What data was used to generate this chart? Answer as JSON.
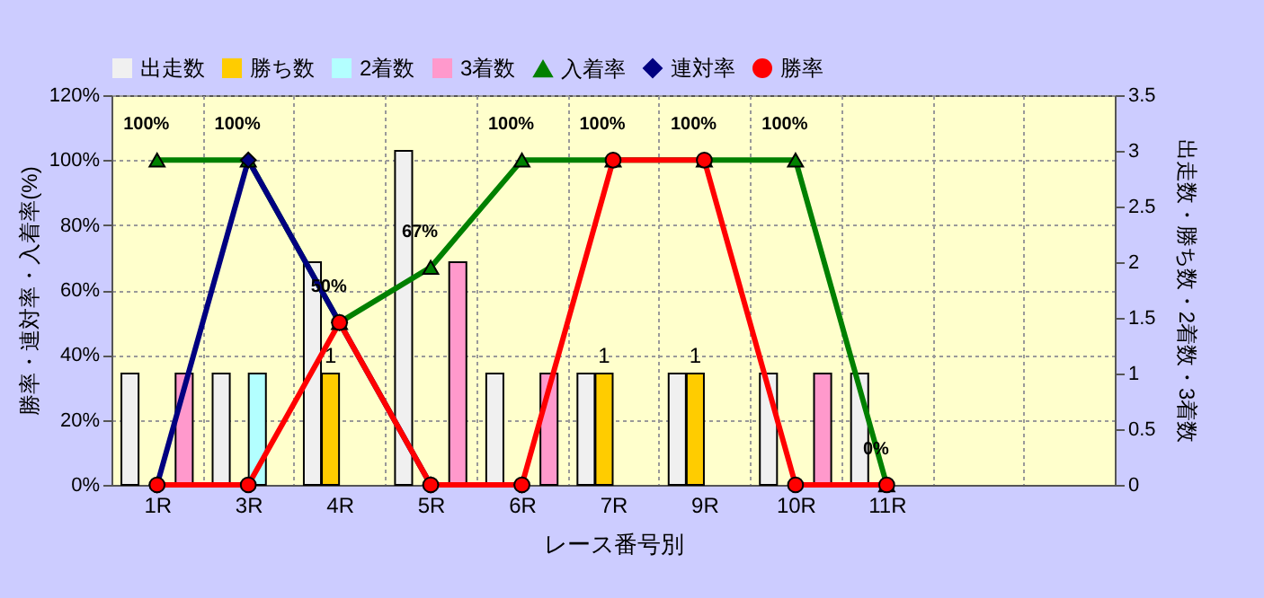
{
  "chart_data": {
    "type": "bar",
    "xlabel": "レース番号別",
    "ylabel": "勝率・連対率・入着率(%)",
    "y2label": "出走数・勝ち数・2着数・3着数",
    "categories": [
      "1R",
      "3R",
      "4R",
      "5R",
      "6R",
      "7R",
      "9R",
      "10R",
      "11R",
      null,
      null
    ],
    "series": [
      {
        "name": "出走数",
        "axis": "y2",
        "color": "#f0f0f0",
        "values": [
          1,
          1,
          2,
          3,
          1,
          1,
          1,
          1,
          1,
          null,
          null
        ]
      },
      {
        "name": "勝ち数",
        "axis": "y2",
        "color": "#ffcc00",
        "values": [
          0,
          0,
          1,
          0,
          0,
          1,
          1,
          0,
          0,
          null,
          null
        ],
        "value_labels": [
          null,
          null,
          "1",
          null,
          null,
          "1",
          "1",
          null,
          null,
          null,
          null
        ]
      },
      {
        "name": "2着数",
        "axis": "y2",
        "color": "#b3ffff",
        "values": [
          0,
          1,
          0,
          0,
          0,
          0,
          0,
          0,
          0,
          null,
          null
        ]
      },
      {
        "name": "3着数",
        "axis": "y2",
        "color": "#ff99cc",
        "values": [
          1,
          0,
          0,
          2,
          1,
          0,
          0,
          1,
          0,
          null,
          null
        ]
      },
      {
        "name": "入着率",
        "type": "line",
        "marker": "triangle",
        "color": "#008000",
        "values": [
          100,
          100,
          50,
          67,
          100,
          100,
          100,
          100,
          0,
          null,
          null
        ],
        "value_labels": [
          "100%",
          "100%",
          "50%",
          "67%",
          "100%",
          "100%",
          "100%",
          "100%",
          "0%",
          null,
          null
        ]
      },
      {
        "name": "連対率",
        "type": "line",
        "marker": "diamond",
        "color": "#000080",
        "values": [
          0,
          100,
          50,
          0,
          0,
          null,
          null,
          null,
          null,
          null,
          null
        ]
      },
      {
        "name": "勝率",
        "type": "line",
        "marker": "circle",
        "color": "#ff0000",
        "values": [
          0,
          0,
          50,
          0,
          0,
          100,
          100,
          0,
          0,
          null,
          null
        ]
      }
    ],
    "ylim": [
      0,
      120
    ],
    "yticks": [
      {
        "value": 0,
        "label": "0%"
      },
      {
        "value": 20,
        "label": "20%"
      },
      {
        "value": 40,
        "label": "40%"
      },
      {
        "value": 60,
        "label": "60%"
      },
      {
        "value": 80,
        "label": "80%"
      },
      {
        "value": 100,
        "label": "100%"
      },
      {
        "value": 120,
        "label": "120%"
      }
    ],
    "y2lim": [
      0,
      3.5
    ],
    "y2ticks": [
      0,
      0.5,
      1,
      1.5,
      2,
      2.5,
      3,
      3.5
    ],
    "grid": true,
    "legend": "top"
  }
}
